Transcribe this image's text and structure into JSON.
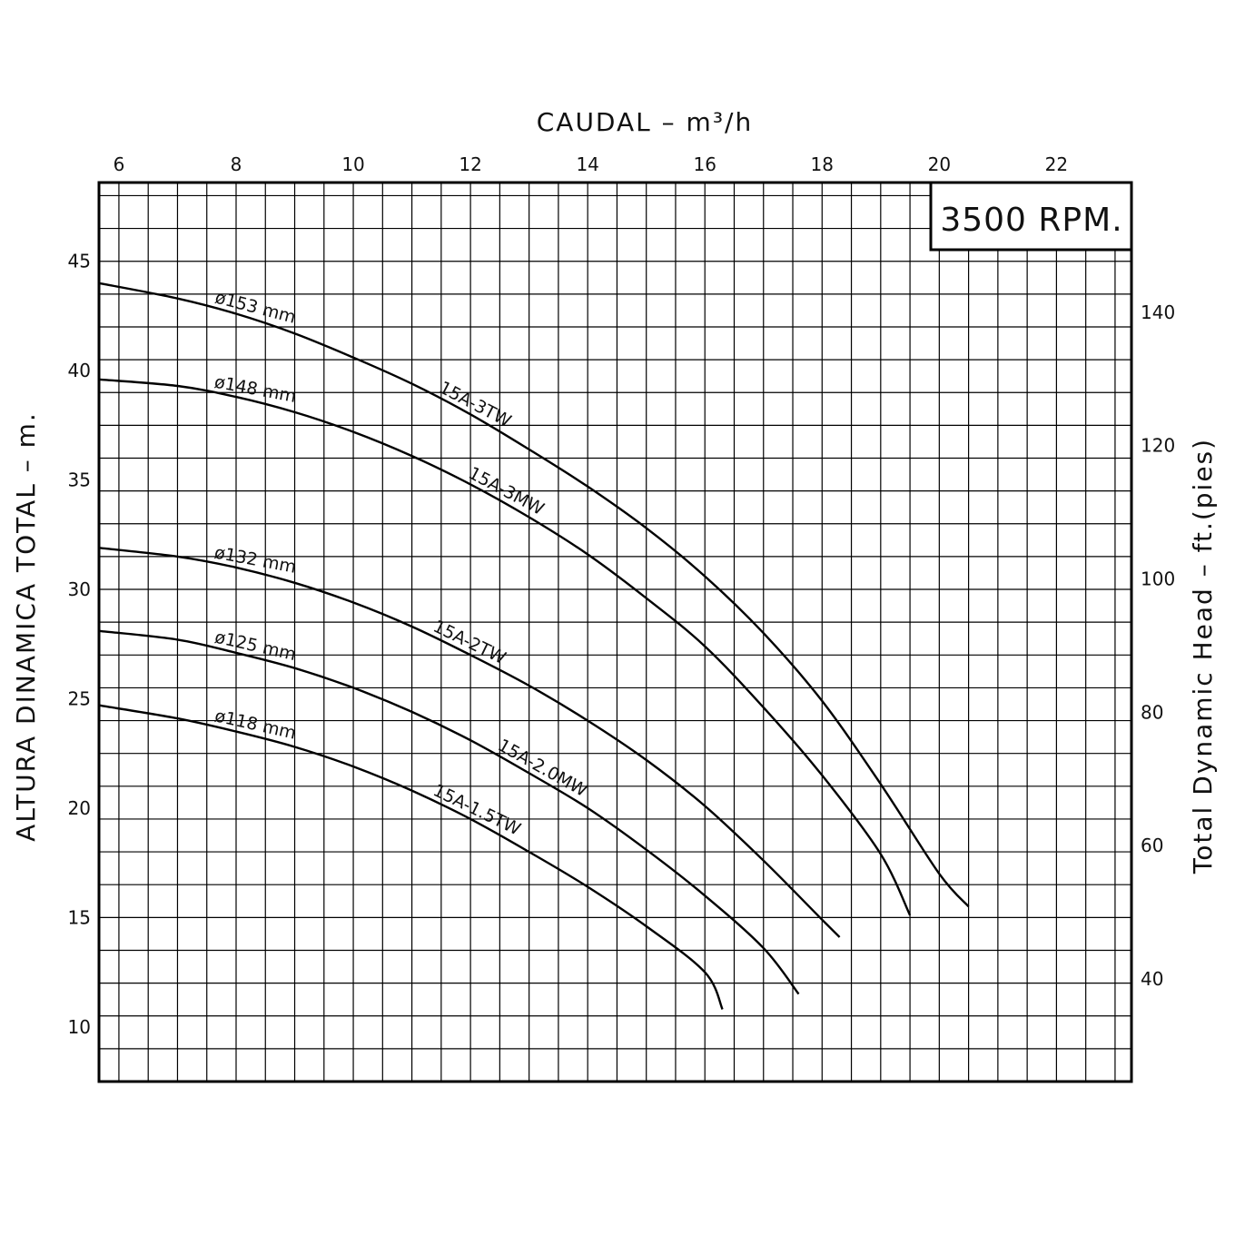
{
  "chart_data": {
    "type": "line",
    "title": "",
    "xlabel": "CAUDAL  – m³/h",
    "ylabel": "ALTURA DINAMICA TOTAL  –  m.",
    "y2label": "Total Dynamic Head  –  ft.(pies)",
    "annotation": "3500 RPM.",
    "xlim": [
      5.66,
      23.28
    ],
    "ylim": [
      7.5,
      48.6
    ],
    "x_ticks": [
      "6",
      "8",
      "10",
      "12",
      "14",
      "16",
      "18",
      "20",
      "22"
    ],
    "y_ticks": [
      "10",
      "15",
      "20",
      "25",
      "30",
      "35",
      "40",
      "45"
    ],
    "y2_ticks": [
      "40",
      "60",
      "80",
      "100",
      "120",
      "140"
    ],
    "grid": true,
    "series": [
      {
        "name": "15A-3TW",
        "diameter_label": "ø153 mm",
        "x": [
          5.66,
          7,
          8,
          9,
          10,
          11,
          12,
          13,
          14,
          15,
          16,
          17,
          18,
          19,
          20,
          20.5
        ],
        "y": [
          44.0,
          43.3,
          42.6,
          41.7,
          40.6,
          39.4,
          38.0,
          36.4,
          34.7,
          32.8,
          30.6,
          28.0,
          24.9,
          21.1,
          17.0,
          15.5
        ]
      },
      {
        "name": "15A-3MW",
        "diameter_label": "ø148 mm",
        "x": [
          5.66,
          7,
          8,
          9,
          10,
          11,
          12,
          13,
          14,
          15,
          16,
          17,
          18,
          19,
          19.5
        ],
        "y": [
          39.6,
          39.3,
          38.8,
          38.1,
          37.2,
          36.1,
          34.8,
          33.3,
          31.6,
          29.6,
          27.4,
          24.6,
          21.5,
          17.9,
          15.1
        ]
      },
      {
        "name": "15A-2TW",
        "diameter_label": "ø132 mm",
        "x": [
          5.66,
          7,
          8,
          9,
          10,
          11,
          12,
          13,
          14,
          15,
          16,
          17,
          18,
          18.3
        ],
        "y": [
          31.9,
          31.5,
          31.0,
          30.3,
          29.4,
          28.3,
          27.0,
          25.6,
          24.0,
          22.2,
          20.1,
          17.6,
          14.9,
          14.1
        ]
      },
      {
        "name": "15A-2.0MW",
        "diameter_label": "ø125 mm",
        "x": [
          5.66,
          7,
          8,
          9,
          10,
          11,
          12,
          13,
          14,
          15,
          16,
          17,
          17.6
        ],
        "y": [
          28.1,
          27.7,
          27.1,
          26.4,
          25.5,
          24.4,
          23.1,
          21.6,
          20.0,
          18.1,
          16.0,
          13.6,
          11.5
        ]
      },
      {
        "name": "15A-1.5TW",
        "diameter_label": "ø118 mm",
        "x": [
          5.66,
          7,
          8,
          9,
          10,
          11,
          12,
          13,
          14,
          15,
          16,
          16.3
        ],
        "y": [
          24.7,
          24.1,
          23.5,
          22.8,
          21.9,
          20.8,
          19.5,
          18.0,
          16.4,
          14.6,
          12.5,
          10.8
        ]
      }
    ]
  }
}
